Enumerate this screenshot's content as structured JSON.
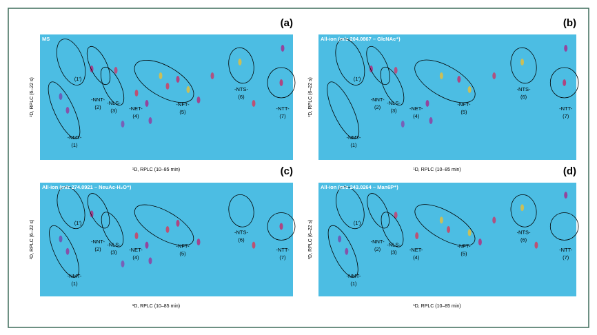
{
  "panels": [
    {
      "letter": "(a)",
      "title": "MS",
      "y_label": "²D, RPLC (6–22 s)",
      "x_label": "¹D, RPLC (10–85 min)",
      "groups": [
        {
          "name": "-NMT-",
          "number": "(1)"
        },
        {
          "name": "-NNT-",
          "number": "(2)"
        },
        {
          "name": "-NLS-",
          "number": "(3)"
        },
        {
          "name": "-NET-",
          "number": "(4)"
        },
        {
          "name": "-NFT-",
          "number": "(5)"
        },
        {
          "name": "-NTS-",
          "number": "(6)"
        },
        {
          "name": "-NTT-",
          "number": "(7)"
        }
      ],
      "prime": "(1')"
    },
    {
      "letter": "(b)",
      "title": "All-ion (m/z 204.0867 – GlcNAc⁺)",
      "y_label": "²D, RPLC (6–22 s)",
      "x_label": "¹D, RPLC (10–85 min)",
      "groups": [
        {
          "name": "-NMT-",
          "number": "(1)"
        },
        {
          "name": "-NNT-",
          "number": "(2)"
        },
        {
          "name": "-NLS-",
          "number": "(3)"
        },
        {
          "name": "-NET-",
          "number": "(4)"
        },
        {
          "name": "-NFT-",
          "number": "(5)"
        },
        {
          "name": "-NTS-",
          "number": "(6)"
        },
        {
          "name": "-NTT-",
          "number": "(7)"
        }
      ],
      "prime": "(1')"
    },
    {
      "letter": "(c)",
      "title": "All-ion (m/z 274.0921 – NeuAc-H₂O⁺)",
      "y_label": "²D, RPLC (6–22 s)",
      "x_label": "¹D, RPLC (10–85 min)",
      "groups": [
        {
          "name": "-NMT-",
          "number": "(1)"
        },
        {
          "name": "-NNT-",
          "number": "(2)"
        },
        {
          "name": "-NLS-",
          "number": "(3)"
        },
        {
          "name": "-NET-",
          "number": "(4)"
        },
        {
          "name": "-NFT-",
          "number": "(5)"
        },
        {
          "name": "-NTS-",
          "number": "(6)"
        },
        {
          "name": "-NTT-",
          "number": "(7)"
        }
      ],
      "prime": "(1')"
    },
    {
      "letter": "(d)",
      "title": "All-ion (m/z 243.0264 – Man6P⁺)",
      "y_label": "²D, RPLC (6–22 s)",
      "x_label": "¹D, RPLC (10–85 min)",
      "groups": [
        {
          "name": "-NMT-",
          "number": "(1)"
        },
        {
          "name": "-NNT-",
          "number": "(2)"
        },
        {
          "name": "-NLS-",
          "number": "(3)"
        },
        {
          "name": "-NET-",
          "number": "(4)"
        },
        {
          "name": "-NFT-",
          "number": "(5)"
        },
        {
          "name": "-NTS-",
          "number": "(6)"
        },
        {
          "name": "-NTT-",
          "number": "(7)"
        }
      ],
      "prime": "(1')"
    }
  ]
}
